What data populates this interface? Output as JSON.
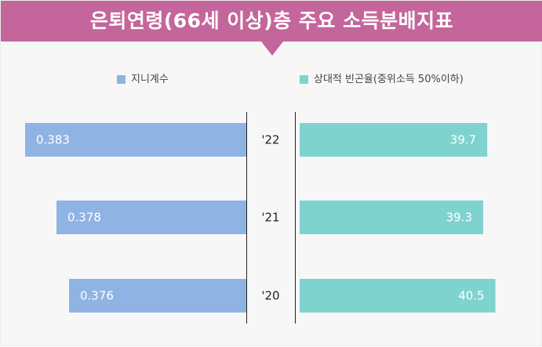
{
  "title": "은퇴연령(66세 이상)층 주요 소득분배지표",
  "legend": {
    "gini": "지니계수",
    "poverty": "상대적 빈곤율(중위소득 50%이하)"
  },
  "colors": {
    "title_band": "#c4669b",
    "gini_bar": "#8fb4e3",
    "poverty_bar": "#7fd3cf",
    "background": "#f7f7f7"
  },
  "chart_data": {
    "type": "bar",
    "orientation": "horizontal-diverging",
    "categories": [
      "'22",
      "'21",
      "'20"
    ],
    "series": [
      {
        "name": "지니계수",
        "values": [
          0.383,
          0.378,
          0.376
        ],
        "direction": "left"
      },
      {
        "name": "상대적 빈곤율(중위소득 50%이하)",
        "values": [
          39.7,
          39.3,
          40.5
        ],
        "direction": "right"
      }
    ],
    "value_labels": {
      "left": [
        "0.383",
        "0.378",
        "0.376"
      ],
      "right": [
        "39.7",
        "39.3",
        "40.5"
      ]
    },
    "grid": false,
    "legend_position": "top"
  }
}
